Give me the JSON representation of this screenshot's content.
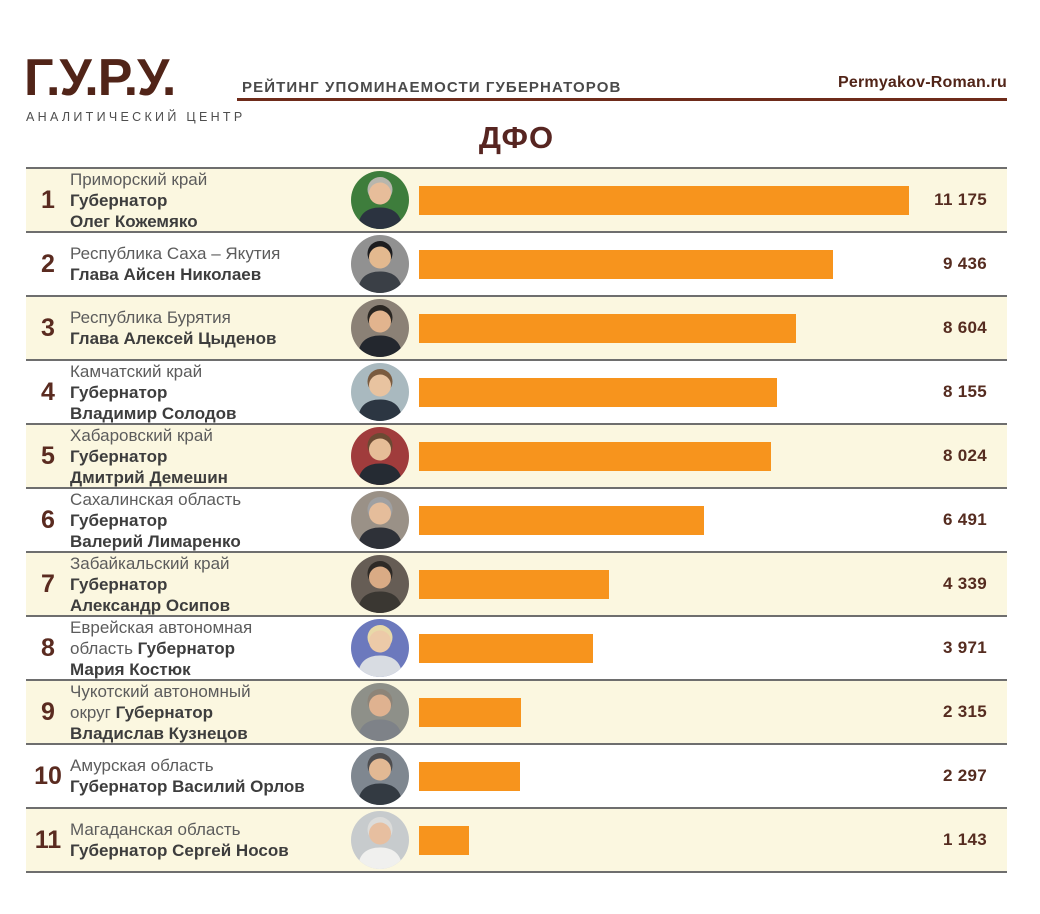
{
  "header": {
    "logo_title": "Г.У.Р.У.",
    "logo_subtitle": "АНАЛИТИЧЕСКИЙ ЦЕНТР",
    "caption": "РЕЙТИНГ УПОМИНАЕМОСТИ ГУБЕРНАТОРОВ",
    "site": "Permyakov-Roman.ru"
  },
  "title": "ДФО",
  "colors": {
    "accent_brown": "#512418",
    "rule_brown": "#6e2b1a",
    "bar_orange": "#f7941d",
    "row_cream": "#fbf7e0",
    "row_white": "#ffffff",
    "separator_gray": "#6e6e6e",
    "region_text": "#5c5c5c",
    "name_text": "#3d3d3d",
    "value_text": "#552c20"
  },
  "chart_data": {
    "type": "bar",
    "title": "ДФО",
    "subtitle": "РЕЙТИНГ УПОМИНАЕМОСТИ ГУБЕРНАТОРОВ",
    "orientation": "horizontal",
    "xlim": [
      0,
      11175
    ],
    "grid": false,
    "legend": "none",
    "categories": [
      "Приморский край — Губернатор Олег Кожемяко",
      "Республика Саха – Якутия — Глава Айсен Николаев",
      "Республика Бурятия — Глава Алексей Цыденов",
      "Камчатский край — Губернатор Владимир Солодов",
      "Хабаровский край — Губернатор Дмитрий Демешин",
      "Сахалинская область — Губернатор Валерий Лимаренко",
      "Забайкальский край — Губернатор Александр Осипов",
      "Еврейская автономная область — Губернатор Мария Костюк",
      "Чукотский автономный округ — Губернатор Владислав Кузнецов",
      "Амурская область — Губернатор Василий Орлов",
      "Магаданская область — Губернатор Сергей Носов"
    ],
    "values": [
      11175,
      9436,
      8604,
      8155,
      8024,
      6491,
      4339,
      3971,
      2315,
      2297,
      1143
    ]
  },
  "rows": [
    {
      "rank": "1",
      "value": 11175,
      "value_label": "11 175",
      "lines": [
        [
          {
            "t": "Приморский край",
            "b": 0
          }
        ],
        [
          {
            "t": "Губернатор",
            "b": 1
          }
        ],
        [
          {
            "t": "Олег Кожемяко",
            "b": 1
          }
        ]
      ],
      "avatar": {
        "name": "photo-oleg-kozhemyako",
        "bg": "#3e7d3c",
        "hair": "#b8b6ad",
        "skin": "#e7bd9a",
        "suit": "#2b3340"
      }
    },
    {
      "rank": "2",
      "value": 9436,
      "value_label": "9 436",
      "lines": [
        [
          {
            "t": "Республика Саха – Якутия",
            "b": 0
          }
        ],
        [
          {
            "t": "Глава Айсен Николаев",
            "b": 1
          }
        ]
      ],
      "avatar": {
        "name": "photo-aysen-nikolaev",
        "bg": "#919191",
        "hair": "#1d1d1f",
        "skin": "#e3b98f",
        "suit": "#3a3f46"
      }
    },
    {
      "rank": "3",
      "value": 8604,
      "value_label": "8 604",
      "lines": [
        [
          {
            "t": "Республика Бурятия",
            "b": 0
          }
        ],
        [
          {
            "t": "Глава Алексей Цыденов",
            "b": 1
          }
        ]
      ],
      "avatar": {
        "name": "photo-aleksey-tsydenov",
        "bg": "#8b8176",
        "hair": "#2a2622",
        "skin": "#e2b48e",
        "suit": "#23272e"
      }
    },
    {
      "rank": "4",
      "value": 8155,
      "value_label": "8 155",
      "lines": [
        [
          {
            "t": "Камчатский край",
            "b": 0
          }
        ],
        [
          {
            "t": "Губернатор",
            "b": 1
          }
        ],
        [
          {
            "t": "Владимир Солодов",
            "b": 1
          }
        ]
      ],
      "avatar": {
        "name": "photo-vladimir-solodov",
        "bg": "#a9b9bf",
        "hair": "#7a5b3f",
        "skin": "#e8c3a0",
        "suit": "#2c3642"
      }
    },
    {
      "rank": "5",
      "value": 8024,
      "value_label": "8 024",
      "lines": [
        [
          {
            "t": "Хабаровский край",
            "b": 0
          }
        ],
        [
          {
            "t": "Губернатор",
            "b": 1
          }
        ],
        [
          {
            "t": "Дмитрий Демешин",
            "b": 1
          }
        ]
      ],
      "avatar": {
        "name": "photo-dmitriy-demeshin",
        "bg": "#a03c3c",
        "hair": "#6b4a33",
        "skin": "#e6bd97",
        "suit": "#252b33"
      }
    },
    {
      "rank": "6",
      "value": 6491,
      "value_label": "6 491",
      "lines": [
        [
          {
            "t": "Сахалинская область",
            "b": 0
          }
        ],
        [
          {
            "t": "Губернатор",
            "b": 1
          }
        ],
        [
          {
            "t": "Валерий Лимаренко",
            "b": 1
          }
        ]
      ],
      "avatar": {
        "name": "photo-valeriy-limarenko",
        "bg": "#9a9187",
        "hair": "#9fa0a2",
        "skin": "#e5bd9b",
        "suit": "#2e3138"
      }
    },
    {
      "rank": "7",
      "value": 4339,
      "value_label": "4 339",
      "lines": [
        [
          {
            "t": "Забайкальский край",
            "b": 0
          }
        ],
        [
          {
            "t": "Губернатор",
            "b": 1
          }
        ],
        [
          {
            "t": "Александр Осипов",
            "b": 1
          }
        ]
      ],
      "avatar": {
        "name": "photo-aleksandr-osipov",
        "bg": "#665d55",
        "hair": "#2e2a26",
        "skin": "#d9ab85",
        "suit": "#3a3732"
      }
    },
    {
      "rank": "8",
      "value": 3971,
      "value_label": "3 971",
      "lines": [
        [
          {
            "t": "Еврейская автономная",
            "b": 0
          }
        ],
        [
          {
            "t": "область ",
            "b": 0
          },
          {
            "t": "Губернатор",
            "b": 1
          }
        ],
        [
          {
            "t": "Мария Костюк",
            "b": 1
          }
        ]
      ],
      "avatar": {
        "name": "photo-mariya-kostyuk",
        "bg": "#6c79bd",
        "hair": "#e8d9a8",
        "skin": "#eccaa8",
        "suit": "#d8dce2"
      }
    },
    {
      "rank": "9",
      "value": 2315,
      "value_label": "2 315",
      "lines": [
        [
          {
            "t": "Чукотский автономный",
            "b": 0
          }
        ],
        [
          {
            "t": "округ ",
            "b": 0
          },
          {
            "t": "Губернатор",
            "b": 1
          }
        ],
        [
          {
            "t": "Владислав Кузнецов",
            "b": 1
          }
        ]
      ],
      "avatar": {
        "name": "photo-vladislav-kuznetsov",
        "bg": "#8e9089",
        "hair": "#8d8478",
        "skin": "#dfb290",
        "suit": "#7e8288"
      }
    },
    {
      "rank": "10",
      "value": 2297,
      "value_label": "2 297",
      "lines": [
        [
          {
            "t": "Амурская область",
            "b": 0
          }
        ],
        [
          {
            "t": "Губернатор Василий Орлов",
            "b": 1
          }
        ]
      ],
      "avatar": {
        "name": "photo-vasiliy-orlov",
        "bg": "#7f8790",
        "hair": "#4e4e50",
        "skin": "#e2b994",
        "suit": "#333a42"
      }
    },
    {
      "rank": "11",
      "value": 1143,
      "value_label": "1 143",
      "lines": [
        [
          {
            "t": "Магаданская область",
            "b": 0
          }
        ],
        [
          {
            "t": "Губернатор Сергей Носов",
            "b": 1
          }
        ]
      ],
      "avatar": {
        "name": "photo-sergey-nosov",
        "bg": "#c7cbcd",
        "hair": "#dcdcda",
        "skin": "#e7bfa0",
        "suit": "#f0f0ee"
      }
    }
  ]
}
